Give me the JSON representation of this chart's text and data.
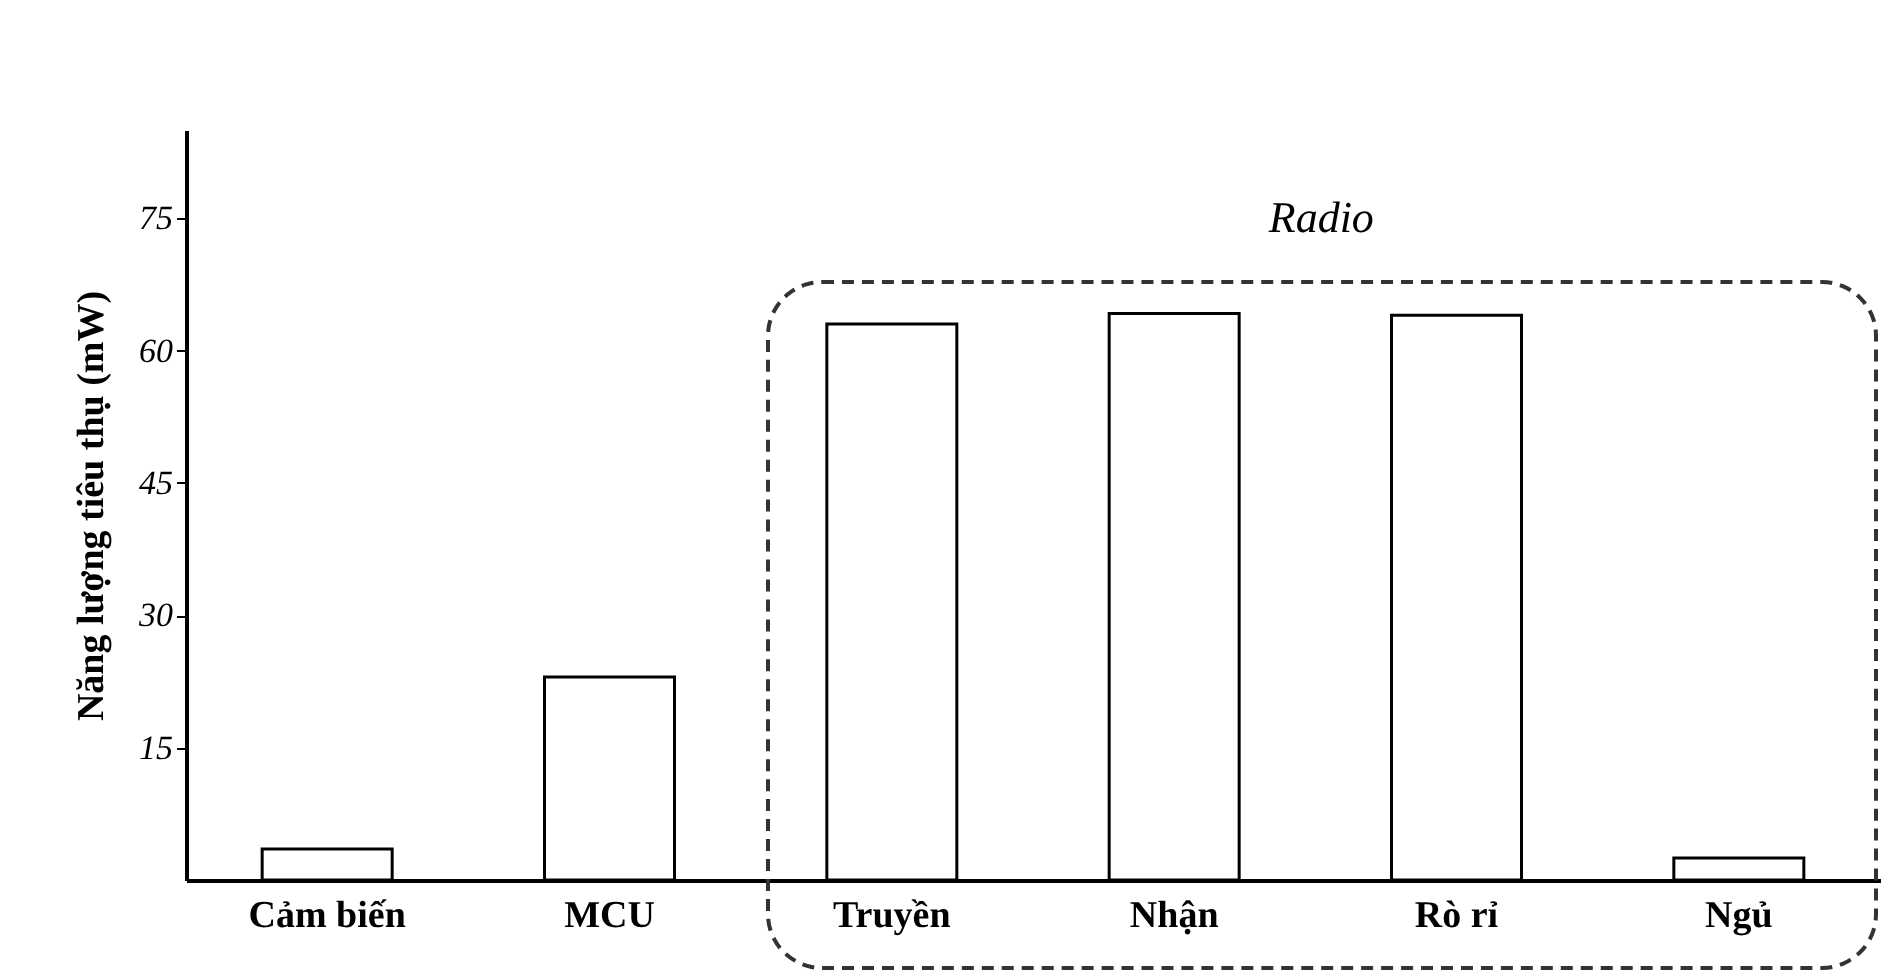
{
  "chart_data": {
    "type": "bar",
    "ylabel": "Năng lượng tiêu thụ (mW)",
    "categories": [
      "Cảm biến",
      "MCU",
      "Truyền",
      "Nhận",
      "Rò rỉ",
      "Ngủ"
    ],
    "values": [
      3.5,
      23,
      63,
      64.2,
      64,
      2.5
    ],
    "color": "#ffffff",
    "ylim": [
      0,
      85
    ],
    "yticks": [
      15,
      30,
      45,
      60,
      75
    ],
    "grid": false,
    "annotations": [
      "Radio"
    ]
  }
}
